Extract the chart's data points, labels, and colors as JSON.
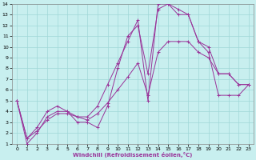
{
  "xlabel": "Windchill (Refroidissement éolien,°C)",
  "xlim": [
    -0.5,
    23.5
  ],
  "ylim": [
    1,
    14
  ],
  "xticks": [
    0,
    1,
    2,
    3,
    4,
    5,
    6,
    7,
    8,
    9,
    10,
    11,
    12,
    13,
    14,
    15,
    16,
    17,
    18,
    19,
    20,
    21,
    22,
    23
  ],
  "yticks": [
    1,
    2,
    3,
    4,
    5,
    6,
    7,
    8,
    9,
    10,
    11,
    12,
    13,
    14
  ],
  "bg_color": "#c8efef",
  "grid_color": "#9fd8d8",
  "line_color": "#993399",
  "series1_x": [
    0,
    1,
    2,
    3,
    4,
    5,
    6,
    7,
    8,
    9,
    10,
    11,
    12,
    13,
    14,
    15,
    16,
    17,
    18,
    19,
    20,
    21,
    22,
    23
  ],
  "series1_y": [
    5.0,
    1.0,
    2.0,
    3.5,
    4.0,
    4.0,
    3.0,
    3.0,
    2.5,
    4.5,
    8.0,
    11.0,
    12.0,
    7.5,
    13.5,
    14.0,
    13.5,
    13.0,
    10.5,
    10.0,
    7.5,
    7.5,
    6.5,
    6.5
  ],
  "series2_x": [
    0,
    1,
    2,
    3,
    4,
    5,
    6,
    7,
    8,
    9,
    10,
    11,
    12,
    13,
    14,
    15,
    16,
    17,
    18,
    19,
    20,
    21,
    22,
    23
  ],
  "series2_y": [
    5.0,
    1.5,
    2.5,
    4.0,
    4.5,
    4.0,
    3.5,
    3.5,
    4.5,
    6.5,
    8.5,
    10.5,
    12.5,
    5.0,
    14.0,
    14.0,
    13.0,
    13.0,
    10.5,
    9.5,
    5.5,
    5.5,
    5.5,
    6.5
  ],
  "series3_x": [
    0,
    1,
    2,
    3,
    4,
    5,
    6,
    7,
    8,
    9,
    10,
    11,
    12,
    13,
    14,
    15,
    16,
    17,
    18,
    19,
    20,
    21,
    22,
    23
  ],
  "series3_y": [
    5.0,
    1.5,
    2.2,
    3.2,
    3.8,
    3.8,
    3.5,
    3.2,
    3.8,
    4.8,
    6.0,
    7.2,
    8.5,
    5.5,
    9.5,
    10.5,
    10.5,
    10.5,
    9.5,
    9.0,
    7.5,
    7.5,
    6.5,
    6.5
  ]
}
